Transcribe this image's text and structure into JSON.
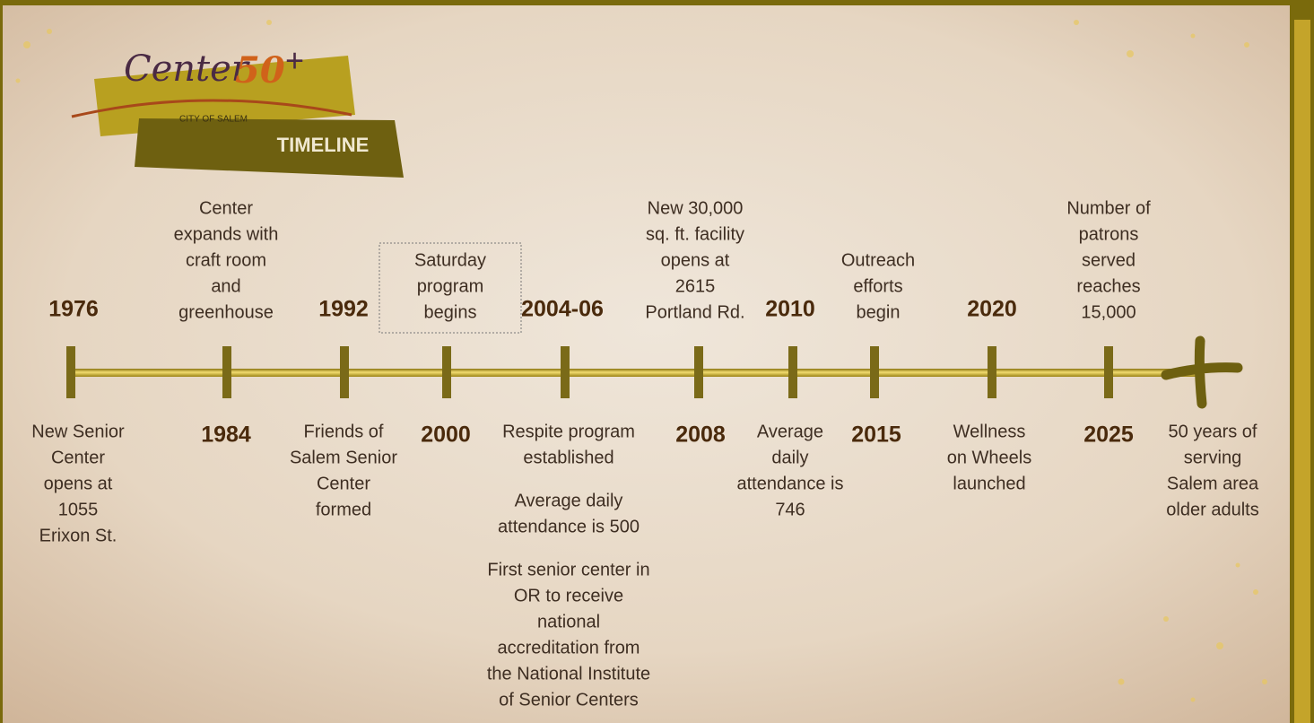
{
  "logo": {
    "name": "Center",
    "number": "50",
    "plus": "+",
    "city": "CITY OF SALEM",
    "banner": "TIMELINE"
  },
  "timeline": {
    "events": [
      {
        "year": "1976",
        "notes": [
          [
            "New Senior",
            "Center",
            "opens at",
            "1055",
            "Erixon St."
          ]
        ]
      },
      {
        "year": "1984",
        "notes": [
          [
            "Center",
            "expands with",
            "craft room",
            "and",
            "greenhouse"
          ]
        ]
      },
      {
        "year": "1992",
        "notes": [
          [
            "Friends of",
            "Salem Senior",
            "Center",
            "formed"
          ]
        ]
      },
      {
        "year": "2000",
        "notes": [
          [
            "Saturday",
            "program",
            "begins"
          ]
        ]
      },
      {
        "year": "2004-06",
        "notes": [
          [
            "Respite program",
            "established"
          ],
          [
            "Average daily",
            "attendance is 500"
          ],
          [
            "First senior center in",
            "OR to receive",
            "national",
            "accreditation from",
            "the National Institute",
            "of Senior Centers"
          ]
        ]
      },
      {
        "year": "2008",
        "notes": [
          [
            "New 30,000",
            "sq. ft. facility",
            "opens at",
            "2615",
            "Portland Rd."
          ]
        ]
      },
      {
        "year": "2010",
        "notes": [
          [
            "Average",
            "daily",
            "attendance is",
            "746"
          ]
        ]
      },
      {
        "year": "2015",
        "notes": [
          [
            "Outreach",
            "efforts",
            "begin"
          ]
        ]
      },
      {
        "year": "2020",
        "notes": [
          [
            "Wellness",
            "on Wheels",
            "launched"
          ]
        ]
      },
      {
        "year": "2025",
        "notes": [
          [
            "Number of",
            "patrons",
            "served",
            "reaches",
            "15,000"
          ]
        ]
      },
      {
        "notes": [
          [
            "50 years of",
            "serving",
            "Salem area",
            "older adults"
          ]
        ]
      }
    ]
  }
}
